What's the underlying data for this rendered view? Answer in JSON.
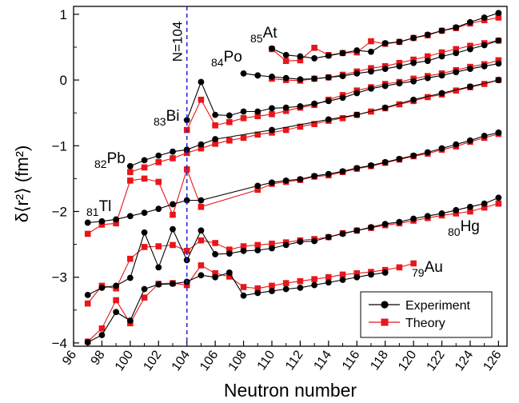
{
  "chart_data": {
    "type": "line",
    "xlabel": "Neutron number",
    "ylabel": "δ⟨r²⟩ (fm²)",
    "xlim": [
      96,
      126.6
    ],
    "ylim": [
      -4.05,
      1.12
    ],
    "x_ticks": [
      96,
      98,
      100,
      102,
      104,
      106,
      108,
      110,
      112,
      114,
      116,
      118,
      120,
      122,
      124,
      126
    ],
    "y_ticks": [
      1,
      0,
      -1,
      -2,
      -3,
      -4
    ],
    "y_tick_labels": [
      "1",
      "0",
      "−1",
      "−2",
      "−3",
      "−4"
    ],
    "grid": false,
    "vline": {
      "x": 104,
      "label": "N=104",
      "color": "#1f1fd6"
    },
    "legend": {
      "position": "bottom-right",
      "entries": [
        {
          "label": "Experiment",
          "color": "#000000",
          "marker": "circle"
        },
        {
          "label": "Theory",
          "color": "#e8161a",
          "marker": "square"
        }
      ]
    },
    "element_labels": [
      {
        "id": "at",
        "sub": "85",
        "sym": "At"
      },
      {
        "id": "po",
        "sub": "84",
        "sym": "Po"
      },
      {
        "id": "bi",
        "sub": "83",
        "sym": "Bi"
      },
      {
        "id": "pb",
        "sub": "82",
        "sym": "Pb"
      },
      {
        "id": "tl",
        "sub": "81",
        "sym": "Tl"
      },
      {
        "id": "hg",
        "sub": "80",
        "sym": "Hg"
      },
      {
        "id": "au",
        "sub": "79",
        "sym": "Au"
      }
    ],
    "series": [
      {
        "element": "At",
        "kind": "experiment",
        "x": [
          110,
          111,
          112,
          113,
          114,
          115,
          116,
          117,
          118,
          119,
          120,
          121,
          122,
          123,
          124,
          125,
          126
        ],
        "y": [
          0.48,
          0.38,
          0.36,
          0.33,
          0.37,
          0.41,
          0.45,
          0.43,
          0.56,
          0.58,
          0.64,
          0.69,
          0.75,
          0.8,
          0.88,
          0.95,
          1.02
        ]
      },
      {
        "element": "At",
        "kind": "theory",
        "x": [
          110,
          111,
          112,
          113,
          114,
          115,
          116,
          117,
          118,
          119,
          120,
          121,
          122,
          123,
          124,
          125,
          126
        ],
        "y": [
          0.47,
          0.29,
          0.3,
          0.49,
          0.38,
          0.41,
          0.42,
          0.59,
          0.55,
          0.58,
          0.64,
          0.68,
          0.75,
          0.79,
          0.86,
          0.91,
          0.95
        ]
      },
      {
        "element": "Po",
        "kind": "experiment",
        "x": [
          108,
          109,
          110,
          111,
          112,
          113,
          114,
          115,
          116,
          117,
          118,
          119,
          120,
          121,
          122,
          123,
          124,
          125,
          126
        ],
        "y": [
          0.1,
          0.07,
          0.05,
          0.03,
          0.01,
          0.02,
          0.04,
          0.06,
          0.1,
          0.13,
          0.17,
          0.21,
          0.26,
          0.29,
          0.36,
          0.41,
          0.47,
          0.53,
          0.6
        ]
      },
      {
        "element": "Po",
        "kind": "theory",
        "x": [
          110,
          111,
          112,
          113,
          114,
          115,
          116,
          117,
          118,
          119,
          120,
          121,
          122,
          123,
          124,
          125,
          126
        ],
        "y": [
          0.02,
          0.0,
          -0.01,
          0.02,
          0.04,
          0.08,
          0.13,
          0.18,
          0.21,
          0.26,
          0.31,
          0.36,
          0.42,
          0.47,
          0.52,
          0.56,
          0.6
        ]
      },
      {
        "element": "Bi",
        "kind": "experiment",
        "x": [
          104,
          105,
          106,
          107,
          108,
          109,
          110,
          111,
          112,
          113,
          114,
          115,
          116,
          117,
          118,
          119,
          120,
          121,
          122,
          123,
          124,
          125,
          126
        ],
        "y": [
          -0.61,
          -0.03,
          -0.53,
          -0.54,
          -0.48,
          -0.48,
          -0.43,
          -0.42,
          -0.4,
          -0.36,
          -0.32,
          -0.27,
          -0.2,
          -0.13,
          -0.09,
          -0.05,
          -0.02,
          0.03,
          0.07,
          0.12,
          0.17,
          0.21,
          0.25
        ]
      },
      {
        "element": "Bi",
        "kind": "theory",
        "x": [
          104,
          105,
          106,
          107,
          108,
          109,
          110,
          111,
          112,
          113,
          114,
          115,
          116,
          117,
          118,
          119,
          120,
          121,
          122,
          123,
          124,
          125,
          126
        ],
        "y": [
          -0.76,
          -0.3,
          -0.69,
          -0.64,
          -0.58,
          -0.55,
          -0.52,
          -0.47,
          -0.42,
          -0.38,
          -0.3,
          -0.23,
          -0.16,
          -0.11,
          -0.06,
          -0.03,
          0.02,
          0.06,
          0.1,
          0.15,
          0.2,
          0.24,
          0.3
        ]
      },
      {
        "element": "Pb",
        "kind": "experiment",
        "x": [
          100,
          101,
          102,
          103,
          104,
          105,
          106,
          110,
          114,
          116,
          118,
          120,
          122,
          124,
          126
        ],
        "y": [
          -1.31,
          -1.22,
          -1.15,
          -1.09,
          -1.06,
          -0.98,
          -0.9,
          -0.76,
          -0.6,
          -0.53,
          -0.42,
          -0.3,
          -0.2,
          -0.1,
          -0.0
        ]
      },
      {
        "element": "Pb",
        "kind": "theory",
        "x": [
          100,
          101,
          102,
          103,
          104,
          105,
          106,
          107,
          108,
          109,
          110,
          111,
          112,
          113,
          114,
          115,
          116,
          117,
          118,
          119,
          120,
          121,
          122,
          123,
          124,
          125,
          126
        ],
        "y": [
          -1.4,
          -1.33,
          -1.25,
          -1.19,
          -1.11,
          -1.04,
          -0.97,
          -0.92,
          -0.88,
          -0.83,
          -0.8,
          -0.76,
          -0.71,
          -0.67,
          -0.62,
          -0.58,
          -0.53,
          -0.48,
          -0.43,
          -0.37,
          -0.32,
          -0.26,
          -0.22,
          -0.16,
          -0.11,
          -0.06,
          -0.0
        ]
      },
      {
        "element": "Tl",
        "kind": "experiment",
        "x": [
          97,
          98,
          99,
          100,
          101,
          102,
          103,
          104,
          105,
          109,
          110,
          111,
          112,
          113,
          114,
          115,
          116,
          117,
          118,
          119,
          120,
          121,
          122,
          123,
          124,
          125,
          126
        ],
        "y": [
          -2.17,
          -2.15,
          -2.12,
          -2.07,
          -2.02,
          -1.96,
          -1.89,
          -1.83,
          -1.83,
          -1.61,
          -1.56,
          -1.53,
          -1.51,
          -1.46,
          -1.43,
          -1.39,
          -1.34,
          -1.3,
          -1.25,
          -1.2,
          -1.15,
          -1.1,
          -1.04,
          -0.98,
          -0.92,
          -0.85,
          -0.8
        ]
      },
      {
        "element": "Tl",
        "kind": "theory",
        "x": [
          97,
          98,
          99,
          100,
          101,
          102,
          103,
          104,
          105,
          109,
          110,
          111,
          112,
          113,
          114,
          115,
          116,
          117,
          118,
          119,
          120,
          121,
          122,
          123,
          124,
          125,
          126
        ],
        "y": [
          -2.34,
          -2.2,
          -2.18,
          -1.53,
          -1.5,
          -1.55,
          -2.05,
          -1.36,
          -1.93,
          -1.67,
          -1.58,
          -1.55,
          -1.52,
          -1.47,
          -1.45,
          -1.4,
          -1.35,
          -1.31,
          -1.26,
          -1.21,
          -1.16,
          -1.12,
          -1.06,
          -1.01,
          -0.94,
          -0.88,
          -0.82
        ]
      },
      {
        "element": "Hg",
        "kind": "experiment",
        "x": [
          97,
          98,
          99,
          100,
          101,
          102,
          103,
          104,
          105,
          106,
          107,
          108,
          109,
          110,
          111,
          112,
          113,
          114,
          115,
          116,
          117,
          118,
          119,
          120,
          121,
          122,
          123,
          124,
          125,
          126
        ],
        "y": [
          -3.27,
          -3.16,
          -3.13,
          -3.01,
          -2.32,
          -2.85,
          -2.27,
          -2.74,
          -2.29,
          -2.65,
          -2.64,
          -2.6,
          -2.59,
          -2.56,
          -2.51,
          -2.46,
          -2.45,
          -2.39,
          -2.34,
          -2.29,
          -2.24,
          -2.19,
          -2.16,
          -2.11,
          -2.07,
          -2.03,
          -1.98,
          -1.93,
          -1.88,
          -1.79
        ]
      },
      {
        "element": "Hg",
        "kind": "theory",
        "x": [
          97,
          98,
          99,
          100,
          101,
          102,
          103,
          104,
          105,
          106,
          107,
          108,
          109,
          110,
          111,
          112,
          113,
          114,
          115,
          116,
          117,
          118,
          119,
          120,
          121,
          122,
          123,
          124,
          125,
          126
        ],
        "y": [
          -3.4,
          -3.13,
          -3.17,
          -2.72,
          -2.54,
          -2.53,
          -2.51,
          -2.6,
          -2.44,
          -2.48,
          -2.58,
          -2.53,
          -2.51,
          -2.49,
          -2.47,
          -2.44,
          -2.42,
          -2.39,
          -2.33,
          -2.29,
          -2.25,
          -2.21,
          -2.18,
          -2.14,
          -2.1,
          -2.06,
          -2.03,
          -2.0,
          -1.94,
          -1.88
        ]
      },
      {
        "element": "Au",
        "kind": "experiment",
        "x": [
          97,
          98,
          99,
          100,
          101,
          102,
          103,
          104,
          105,
          106,
          107,
          108,
          109,
          110,
          111,
          112,
          113,
          114,
          115,
          116,
          117,
          118
        ],
        "y": [
          -3.99,
          -3.88,
          -3.53,
          -3.66,
          -3.18,
          -3.11,
          -3.1,
          -3.07,
          -2.97,
          -3.0,
          -2.93,
          -3.28,
          -3.24,
          -3.21,
          -3.18,
          -3.16,
          -3.12,
          -3.08,
          -3.04,
          -3.0,
          -2.96,
          -2.93
        ]
      },
      {
        "element": "Au",
        "kind": "theory",
        "x": [
          97,
          98,
          99,
          100,
          101,
          102,
          103,
          104,
          105,
          106,
          107,
          108,
          109,
          110,
          111,
          112,
          113,
          114,
          115,
          116,
          117,
          118,
          119,
          120
        ],
        "y": [
          -3.98,
          -3.78,
          -3.35,
          -3.7,
          -3.31,
          -3.1,
          -3.09,
          -3.12,
          -2.82,
          -2.94,
          -2.99,
          -3.15,
          -3.17,
          -3.13,
          -3.09,
          -3.06,
          -3.03,
          -3.0,
          -2.96,
          -2.94,
          -2.92,
          -2.89,
          -2.85,
          -2.79
        ]
      }
    ]
  }
}
